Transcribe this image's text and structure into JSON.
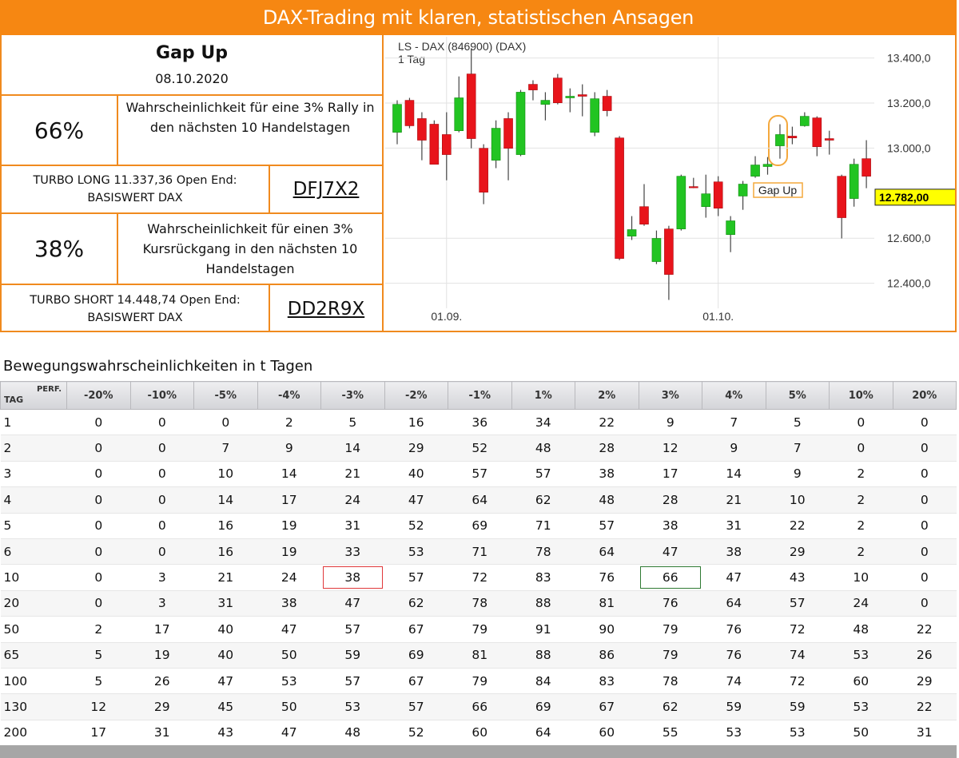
{
  "header": {
    "title": "DAX-Trading mit klaren, statistischen Ansagen"
  },
  "signal": {
    "title": "Gap Up",
    "date": "08.10.2020"
  },
  "probabilities": [
    {
      "value": "66%",
      "text": "Wahrscheinlichkeit für eine 3% Rally in den nächsten 10 Handelstagen",
      "product": "TURBO LONG 11.337,36 Open End: BASISWERT DAX",
      "code": "DFJ7X2"
    },
    {
      "value": "38%",
      "text": "Wahrscheinlichkeit für einen 3% Kursrückgang in den nächsten 10 Handelstagen",
      "product": "TURBO SHORT 14.448,74 Open End: BASISWERT DAX",
      "code": "DD2R9X"
    }
  ],
  "chart_data": {
    "type": "candlestick",
    "title": "LS - DAX (846900) (DAX)",
    "subtitle": "1 Tag",
    "categories": [
      null,
      null,
      null,
      null,
      "01.09.",
      null,
      null,
      null,
      null,
      null,
      null,
      null,
      null,
      null,
      null,
      null,
      null,
      null,
      null,
      null,
      null,
      null,
      null,
      null,
      null,
      null,
      "01.10.",
      null,
      null,
      null,
      null,
      null,
      null,
      null,
      null,
      null,
      null,
      null,
      null
    ],
    "open": [
      13070,
      13212,
      13131,
      13106,
      13060,
      13077,
      13329,
      12999,
      12946,
      13131,
      12971,
      13283,
      13194,
      13311,
      13223,
      13237,
      13070,
      13230,
      13045,
      12609,
      12740,
      12496,
      12641,
      12641,
      12829,
      12740,
      12850,
      12616,
      12787,
      12875,
      12918,
      13010,
      13053,
      13099,
      13134,
      13042,
      12875,
      12776,
      12953
    ],
    "high": [
      13212,
      13223,
      13159,
      13123,
      13159,
      13318,
      13443,
      13017,
      13123,
      13159,
      13258,
      13301,
      13248,
      13329,
      13265,
      13283,
      13248,
      13258,
      13053,
      12698,
      12840,
      12634,
      12655,
      12882,
      12868,
      12882,
      12875,
      12698,
      12854,
      12964,
      12960,
      13106,
      13095,
      13159,
      13141,
      13077,
      12882,
      12953,
      13035
    ],
    "low": [
      13017,
      13088,
      12946,
      12928,
      12857,
      13070,
      12999,
      12751,
      12911,
      12857,
      12964,
      13212,
      13123,
      13194,
      13159,
      13141,
      13053,
      13141,
      12503,
      12592,
      12655,
      12485,
      12326,
      12634,
      12822,
      12691,
      12698,
      12538,
      12726,
      12868,
      12882,
      12953,
      13017,
      13095,
      12964,
      12971,
      12599,
      12740,
      12822
    ],
    "close": [
      13194,
      13099,
      13035,
      12928,
      12971,
      13223,
      13042,
      12804,
      13088,
      12999,
      13248,
      13258,
      13212,
      13201,
      13230,
      13230,
      13219,
      13166,
      12510,
      12638,
      12662,
      12599,
      12439,
      12875,
      12826,
      12797,
      12733,
      12677,
      12840,
      12925,
      12928,
      13060,
      13045,
      13141,
      13006,
      13035,
      12691,
      12928,
      12875
    ],
    "up_color": "#22c422",
    "down_color": "#e8141b",
    "ylim": [
      12310,
      13480
    ],
    "yticks": [
      {
        "value": 12400,
        "label": "12.400,0"
      },
      {
        "value": 12600,
        "label": "12.600,0"
      },
      {
        "value": 13000,
        "label": "13.000,0"
      },
      {
        "value": 13200,
        "label": "13.200,0"
      },
      {
        "value": 13400,
        "label": "13.400,0"
      }
    ],
    "grid": true,
    "last_price": {
      "value": 12782,
      "label": "12.782,00"
    },
    "annotations": [
      {
        "text": "Gap Up"
      }
    ]
  },
  "table": {
    "caption": "Bewegungswahrscheinlichkeiten in t Tagen",
    "row_header": "TAG",
    "column_header": "PERF.",
    "columns": [
      "-20%",
      "-10%",
      "-5%",
      "-4%",
      "-3%",
      "-2%",
      "-1%",
      "1%",
      "2%",
      "3%",
      "4%",
      "5%",
      "10%",
      "20%"
    ],
    "rows": [
      [
        1,
        0,
        0,
        0,
        2,
        5,
        16,
        36,
        34,
        22,
        9,
        7,
        5,
        0,
        0
      ],
      [
        2,
        0,
        0,
        7,
        9,
        14,
        29,
        52,
        48,
        28,
        12,
        9,
        7,
        0,
        0
      ],
      [
        3,
        0,
        0,
        10,
        14,
        21,
        40,
        57,
        57,
        38,
        17,
        14,
        9,
        2,
        0
      ],
      [
        4,
        0,
        0,
        14,
        17,
        24,
        47,
        64,
        62,
        48,
        28,
        21,
        10,
        2,
        0
      ],
      [
        5,
        0,
        0,
        16,
        19,
        31,
        52,
        69,
        71,
        57,
        38,
        31,
        22,
        2,
        0
      ],
      [
        6,
        0,
        0,
        16,
        19,
        33,
        53,
        71,
        78,
        64,
        47,
        38,
        29,
        2,
        0
      ],
      [
        10,
        0,
        3,
        21,
        24,
        38,
        57,
        72,
        83,
        76,
        66,
        47,
        43,
        10,
        0
      ],
      [
        20,
        0,
        3,
        31,
        38,
        47,
        62,
        78,
        88,
        81,
        76,
        64,
        57,
        24,
        0
      ],
      [
        50,
        2,
        17,
        40,
        47,
        57,
        67,
        79,
        91,
        90,
        79,
        76,
        72,
        48,
        22
      ],
      [
        65,
        5,
        19,
        40,
        50,
        59,
        69,
        81,
        88,
        86,
        79,
        76,
        74,
        53,
        26
      ],
      [
        100,
        5,
        26,
        47,
        53,
        57,
        67,
        79,
        84,
        83,
        78,
        74,
        72,
        60,
        29
      ],
      [
        130,
        12,
        29,
        45,
        50,
        53,
        57,
        66,
        69,
        67,
        62,
        59,
        59,
        53,
        22
      ],
      [
        200,
        17,
        31,
        43,
        47,
        48,
        52,
        60,
        64,
        60,
        55,
        53,
        53,
        50,
        31
      ]
    ],
    "highlighted_cells": [
      {
        "row": 6,
        "column": 5,
        "color": "#e0383a"
      },
      {
        "row": 6,
        "column": 10,
        "color": "#2f7a33"
      }
    ]
  }
}
